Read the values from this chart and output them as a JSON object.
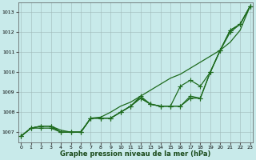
{
  "x": [
    0,
    1,
    2,
    3,
    4,
    5,
    6,
    7,
    8,
    9,
    10,
    11,
    12,
    13,
    14,
    15,
    16,
    17,
    18,
    19,
    20,
    21,
    22,
    23
  ],
  "series1_nomarker": [
    1006.8,
    1007.2,
    1007.3,
    1007.3,
    1007.1,
    1007.0,
    1007.0,
    1007.7,
    1007.75,
    1008.0,
    1008.3,
    1008.5,
    1008.8,
    1009.1,
    1009.4,
    1009.7,
    1009.9,
    1010.2,
    1010.5,
    1010.8,
    1011.1,
    1011.5,
    1012.1,
    1013.3
  ],
  "series2_marker": [
    1006.8,
    1007.2,
    1007.3,
    1007.3,
    1007.0,
    1007.0,
    1007.0,
    1007.7,
    1007.7,
    1007.7,
    1008.0,
    1008.3,
    1008.7,
    1008.4,
    1008.3,
    1008.3,
    1008.3,
    1008.7,
    1008.7,
    1010.0,
    1011.1,
    1012.1,
    1012.4,
    1013.3
  ],
  "series3_marker": [
    1006.8,
    1007.2,
    1007.3,
    1007.3,
    1007.0,
    1007.0,
    1007.0,
    1007.7,
    1007.7,
    1007.7,
    1008.0,
    1008.3,
    1008.8,
    1008.4,
    1008.3,
    1008.3,
    1009.3,
    1009.6,
    1009.3,
    1010.0,
    1011.1,
    1012.0,
    1012.4,
    1013.3
  ],
  "series4_marker": [
    1006.8,
    1007.2,
    1007.2,
    1007.2,
    1007.0,
    1007.0,
    1007.0,
    1007.7,
    1007.7,
    1007.7,
    1008.0,
    1008.3,
    1008.7,
    1008.4,
    1008.3,
    1008.3,
    1008.3,
    1008.8,
    1008.7,
    1010.0,
    1011.1,
    1012.1,
    1012.4,
    1013.3
  ],
  "line_color": "#1e6b1e",
  "bg_color": "#c8eaea",
  "grid_color": "#a0b8b8",
  "xlabel": "Graphe pression niveau de la mer (hPa)",
  "ylim": [
    1006.5,
    1013.5
  ],
  "yticks": [
    1007,
    1008,
    1009,
    1010,
    1011,
    1012,
    1013
  ],
  "xlim": [
    -0.3,
    23.3
  ],
  "marker_size": 2.5,
  "line_width": 0.9
}
